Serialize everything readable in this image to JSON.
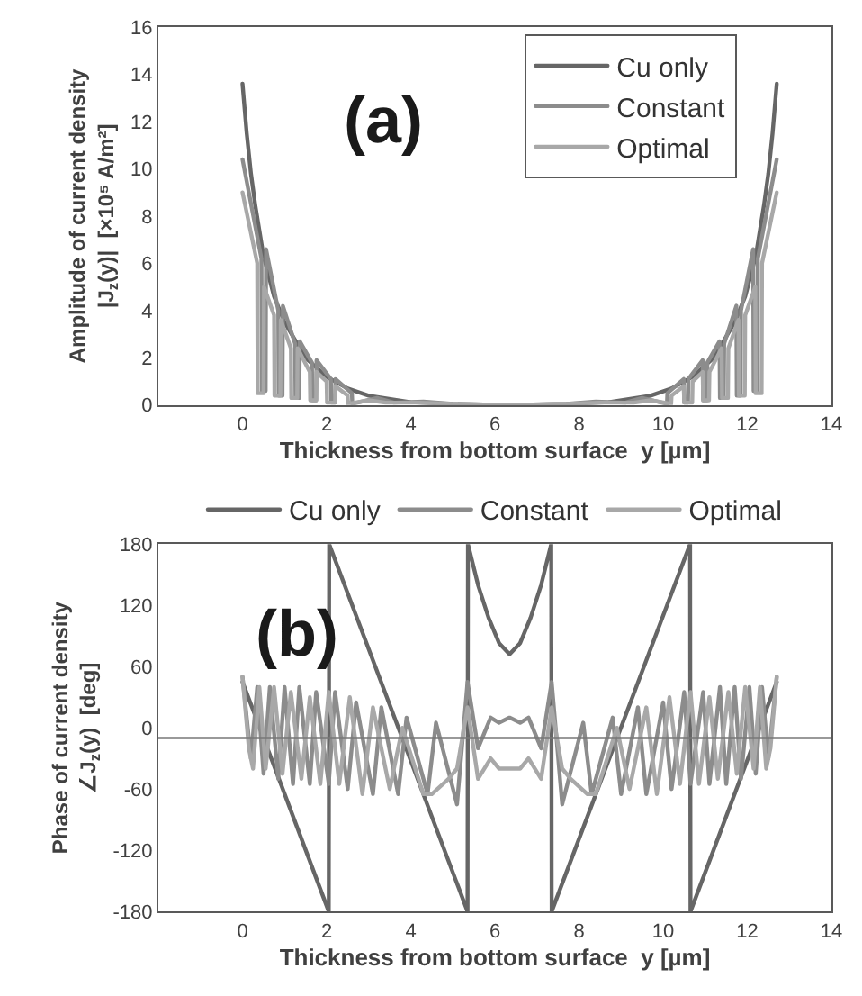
{
  "chart_data": [
    {
      "type": "line",
      "xlabel": "Thickness from bottom surface  y [µm]",
      "ylabel": "Amplitude of current density\n|J$_{z}$(y)|  [×10⁵ A/m²]",
      "annotations": [
        "(a)"
      ],
      "xlim": [
        -2,
        14
      ],
      "xticks": [
        0,
        2,
        4,
        6,
        8,
        10,
        12,
        14
      ],
      "ylim": [
        0,
        16
      ],
      "yticks": [
        0,
        2,
        4,
        6,
        8,
        10,
        12,
        14,
        16
      ],
      "grid": false,
      "legend": "top right",
      "marker": "none",
      "line_style": "solid",
      "series": [
        {
          "name": "Cu only",
          "color": "#666666",
          "x": [
            0,
            0.1,
            0.2,
            0.3,
            0.5,
            0.75,
            1,
            1.5,
            2,
            2.5,
            3,
            4,
            5,
            6.35,
            7.7,
            8.7,
            9.7,
            10.2,
            10.7,
            11.2,
            11.7,
            11.95,
            12.2,
            12.4,
            12.5,
            12.6,
            12.7
          ],
          "values": [
            13.6,
            11.5,
            9.8,
            8.5,
            6.3,
            4.6,
            3.5,
            2.0,
            1.2,
            0.7,
            0.4,
            0.12,
            0.04,
            0,
            0.04,
            0.12,
            0.4,
            0.7,
            1.2,
            2.0,
            3.5,
            4.6,
            6.3,
            8.5,
            9.8,
            11.5,
            13.6
          ]
        },
        {
          "name": "Constant",
          "color": "#8c8c8c",
          "x": [
            0,
            0.45,
            0.46,
            0.55,
            0.56,
            0.85,
            0.86,
            0.95,
            0.96,
            1.25,
            1.26,
            1.35,
            1.36,
            1.65,
            1.66,
            1.75,
            1.76,
            2.1,
            2.11,
            2.2,
            2.21,
            2.6,
            2.61,
            3.2,
            3.6,
            4.3,
            5,
            6.35,
            7.7,
            8.4,
            9.1,
            9.5,
            10.09,
            10.1,
            10.49,
            10.5,
            10.59,
            10.6,
            10.94,
            10.95,
            11.04,
            11.05,
            11.34,
            11.35,
            11.44,
            11.45,
            11.74,
            11.75,
            11.84,
            11.85,
            12.14,
            12.15,
            12.24,
            12.25,
            12.7
          ],
          "values": [
            10.4,
            6.2,
            0.6,
            0.6,
            6.6,
            4.0,
            0.4,
            0.4,
            4.2,
            2.6,
            0.3,
            0.3,
            2.7,
            1.8,
            0.2,
            0.2,
            1.9,
            1.1,
            0.1,
            0.1,
            1.1,
            0.5,
            0.05,
            0.3,
            0.1,
            0.15,
            0.05,
            0,
            0.05,
            0.15,
            0.1,
            0.3,
            0.05,
            0.5,
            1.1,
            0.1,
            0.1,
            1.1,
            1.9,
            0.2,
            0.2,
            1.8,
            2.7,
            0.3,
            0.3,
            2.6,
            4.2,
            0.4,
            0.4,
            4.0,
            6.6,
            0.6,
            0.6,
            6.2,
            10.4
          ]
        },
        {
          "name": "Optimal",
          "color": "#a8a8a8",
          "x": [
            0,
            0.35,
            0.36,
            0.5,
            0.51,
            0.75,
            0.76,
            0.9,
            0.91,
            1.15,
            1.16,
            1.3,
            1.31,
            1.6,
            1.61,
            1.75,
            1.76,
            2.0,
            2.01,
            2.2,
            2.21,
            2.5,
            2.51,
            3.0,
            3.4,
            4.2,
            5,
            6.35,
            7.7,
            8.5,
            9.3,
            9.7,
            10.19,
            10.2,
            10.49,
            10.5,
            10.69,
            10.7,
            10.94,
            10.95,
            11.09,
            11.1,
            11.39,
            11.4,
            11.54,
            11.55,
            11.79,
            11.8,
            11.94,
            11.95,
            12.19,
            12.2,
            12.34,
            12.35,
            12.7
          ],
          "values": [
            9.0,
            6.0,
            0.5,
            0.5,
            5.0,
            3.8,
            0.4,
            0.4,
            3.6,
            2.4,
            0.3,
            0.3,
            2.4,
            1.4,
            0.2,
            0.2,
            1.4,
            1.0,
            0.1,
            0.1,
            0.8,
            0.4,
            0.05,
            0.2,
            0.1,
            0.1,
            0.05,
            0,
            0.05,
            0.1,
            0.1,
            0.2,
            0.05,
            0.4,
            0.8,
            0.1,
            0.1,
            1.0,
            1.4,
            0.2,
            0.2,
            1.4,
            2.4,
            0.3,
            0.3,
            2.4,
            3.6,
            0.4,
            0.4,
            3.8,
            5.0,
            0.5,
            0.5,
            6.0,
            9.0
          ]
        }
      ]
    },
    {
      "type": "line",
      "xlabel": "Thickness from bottom surface  y [µm]",
      "ylabel": "Phase of current density\n∠J$_{z}$(y)  [deg]",
      "annotations": [
        "(b)"
      ],
      "xlim": [
        -2,
        14
      ],
      "xticks": [
        0,
        2,
        4,
        6,
        8,
        10,
        12,
        14
      ],
      "ylim": [
        -180,
        180
      ],
      "yticks": [
        -180,
        -120,
        -60,
        0,
        60,
        120,
        180
      ],
      "grid": false,
      "legend": "top",
      "marker": "none",
      "line_style": "solid",
      "ref_lines": [
        {
          "axis": "y",
          "value": -10,
          "color": "#777777"
        }
      ],
      "series": [
        {
          "name": "Cu only",
          "color": "#666666",
          "x": [
            0,
            2.05,
            2.06,
            5.35,
            5.36,
            5.6,
            5.85,
            6.1,
            6.35,
            6.6,
            6.85,
            7.1,
            7.34,
            7.35,
            10.64,
            10.65,
            12.7
          ],
          "values": [
            45,
            -180,
            180,
            -180,
            180,
            140,
            108,
            83,
            72,
            83,
            108,
            140,
            180,
            -180,
            180,
            -180,
            45
          ]
        },
        {
          "name": "Constant",
          "color": "#8c8c8c",
          "x": [
            0,
            0.2,
            0.35,
            0.5,
            0.65,
            0.85,
            1.0,
            1.2,
            1.35,
            1.6,
            1.75,
            2.05,
            2.2,
            2.5,
            2.7,
            3.1,
            3.3,
            3.7,
            3.9,
            4.4,
            4.6,
            5.1,
            5.35,
            5.6,
            5.9,
            6.1,
            6.35,
            6.6,
            6.8,
            7.1,
            7.35,
            7.6,
            8.1,
            8.3,
            8.8,
            9.0,
            9.4,
            9.6,
            10.0,
            10.2,
            10.5,
            10.65,
            10.95,
            11.1,
            11.35,
            11.5,
            11.7,
            11.85,
            12.05,
            12.2,
            12.35,
            12.5,
            12.7
          ],
          "values": [
            50,
            -30,
            40,
            -45,
            40,
            -50,
            40,
            -55,
            40,
            -55,
            35,
            -55,
            35,
            -60,
            25,
            -65,
            20,
            -65,
            10,
            -65,
            5,
            -75,
            45,
            -20,
            10,
            5,
            10,
            5,
            10,
            -20,
            45,
            -75,
            5,
            -65,
            10,
            -65,
            20,
            -65,
            25,
            -60,
            35,
            -55,
            35,
            -55,
            40,
            -55,
            40,
            -50,
            40,
            -45,
            40,
            -30,
            50
          ]
        },
        {
          "name": "Optimal",
          "color": "#a8a8a8",
          "x": [
            0,
            0.15,
            0.25,
            0.4,
            0.55,
            0.75,
            0.95,
            1.15,
            1.4,
            1.6,
            1.85,
            2.05,
            2.3,
            2.55,
            2.85,
            3.1,
            3.5,
            3.8,
            4.3,
            4.5,
            4.9,
            5.1,
            5.35,
            5.6,
            5.9,
            6.1,
            6.35,
            6.6,
            6.8,
            7.1,
            7.35,
            7.6,
            7.8,
            8.2,
            8.4,
            8.9,
            9.2,
            9.6,
            9.85,
            10.15,
            10.4,
            10.65,
            10.85,
            11.1,
            11.3,
            11.55,
            11.75,
            11.95,
            12.15,
            12.3,
            12.45,
            12.55,
            12.7
          ],
          "values": [
            50,
            -20,
            -40,
            40,
            -40,
            40,
            -45,
            35,
            -50,
            30,
            -55,
            35,
            -55,
            30,
            -65,
            20,
            -60,
            0,
            -65,
            -65,
            -50,
            -40,
            20,
            -50,
            -30,
            -40,
            -40,
            -40,
            -30,
            -50,
            20,
            -40,
            -50,
            -65,
            -65,
            0,
            -60,
            20,
            -65,
            30,
            -55,
            35,
            -55,
            30,
            -50,
            35,
            -45,
            40,
            -40,
            40,
            -40,
            -20,
            50
          ]
        }
      ]
    }
  ]
}
